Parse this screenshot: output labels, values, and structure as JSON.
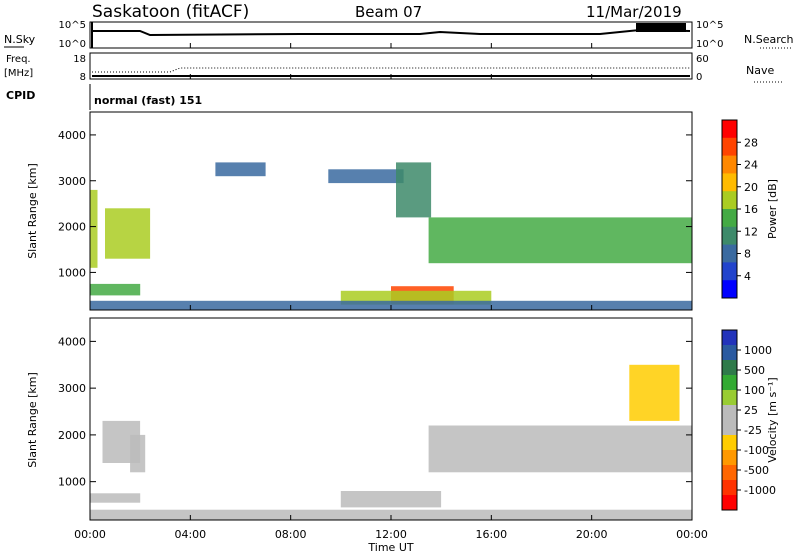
{
  "header": {
    "station": "Saskatoon (fitACF)",
    "beam": "Beam 07",
    "date": "11/Mar/2019"
  },
  "status_panels": {
    "nsky_label": "N.Sky",
    "nsearch_label": "N.Search",
    "noise_ticks": [
      "10^5",
      "10^0"
    ],
    "freq_label_line1": "Freq.",
    "freq_label_line2": "[MHz]",
    "freq_ticks": [
      "18",
      "8"
    ],
    "nave_label": "Nave",
    "nave_ticks": [
      "60",
      "0"
    ],
    "cpid_label": "CPID",
    "cpid_value": "normal (fast) 151"
  },
  "axes": {
    "x_ticks": [
      "00:00",
      "04:00",
      "08:00",
      "12:00",
      "16:00",
      "20:00",
      "00:00"
    ],
    "x_label": "Time UT",
    "y_ticks": [
      "1000",
      "2000",
      "3000",
      "4000"
    ],
    "y_label": "Slant Range [km]"
  },
  "power_colorbar": {
    "label": "Power [dB]",
    "ticks": [
      "28",
      "24",
      "20",
      "16",
      "12",
      "8",
      "4"
    ],
    "colors": [
      "#ff0000",
      "#ff4400",
      "#ff8800",
      "#ffbb00",
      "#aacc22",
      "#44aa44",
      "#3d8a6a",
      "#3a6aa0",
      "#2244cc",
      "#0000ff"
    ]
  },
  "velocity_colorbar": {
    "label": "Velocity [m s⁻¹]",
    "ticks": [
      "1000",
      "500",
      "100",
      "25",
      "-25",
      "-100",
      "-500",
      "-1000"
    ],
    "colors": [
      "#2233bb",
      "#2a5aa0",
      "#2f7a4a",
      "#33aa33",
      "#99cc33",
      "#bbbbbb",
      "#bbbbbb",
      "#ffcc00",
      "#ff9900",
      "#ff6600",
      "#ff3300",
      "#ff0000"
    ]
  },
  "chart_data": {
    "type": "heatmap",
    "title": "Saskatoon (fitACF)  Beam 07  11/Mar/2019",
    "xlabel": "Time UT",
    "ylabel": "Slant Range [km]",
    "xlim": [
      "00:00",
      "24:00"
    ],
    "ylim": [
      180,
      4500
    ],
    "panels": [
      {
        "name": "Power",
        "colorbar_label": "Power [dB]",
        "colorbar_range": [
          0,
          30
        ],
        "regions": [
          {
            "t": [
              0.0,
              0.3
            ],
            "r": [
              1100,
              2800
            ],
            "v": 16
          },
          {
            "t": [
              0.6,
              2.4
            ],
            "r": [
              1300,
              2400
            ],
            "v": 17
          },
          {
            "t": [
              0.0,
              2.0
            ],
            "r": [
              500,
              750
            ],
            "v": 14
          },
          {
            "t": [
              5.0,
              7.0
            ],
            "r": [
              3100,
              3400
            ],
            "v": 7
          },
          {
            "t": [
              9.5,
              12.5
            ],
            "r": [
              2950,
              3250
            ],
            "v": 7
          },
          {
            "t": [
              12.2,
              13.6
            ],
            "r": [
              2200,
              3400
            ],
            "v": 10
          },
          {
            "t": [
              13.5,
              24.0
            ],
            "r": [
              1200,
              2200
            ],
            "v": 14
          },
          {
            "t": [
              12.0,
              14.5
            ],
            "r": [
              300,
              700
            ],
            "v": 26
          },
          {
            "t": [
              10.0,
              16.0
            ],
            "r": [
              300,
              600
            ],
            "v": 16
          },
          {
            "t": [
              0.0,
              24.0
            ],
            "r": [
              180,
              380
            ],
            "v": 8
          }
        ]
      },
      {
        "name": "Velocity",
        "colorbar_label": "Velocity [m s⁻¹]",
        "colorbar_range": [
          -1000,
          1000
        ],
        "regions": [
          {
            "t": [
              0.5,
              2.0
            ],
            "r": [
              1400,
              2300
            ],
            "v": 0
          },
          {
            "t": [
              1.6,
              2.2
            ],
            "r": [
              1200,
              2000
            ],
            "v": 100
          },
          {
            "t": [
              0.0,
              2.0
            ],
            "r": [
              550,
              750
            ],
            "v": 0
          },
          {
            "t": [
              13.5,
              24.0
            ],
            "r": [
              1200,
              2200
            ],
            "v": 0
          },
          {
            "t": [
              10.0,
              14.0
            ],
            "r": [
              450,
              800
            ],
            "v": -150
          },
          {
            "t": [
              21.5,
              23.5
            ],
            "r": [
              2300,
              3500
            ],
            "v": -300
          },
          {
            "t": [
              0.0,
              24.0
            ],
            "r": [
              180,
              400
            ],
            "v": 60
          }
        ]
      }
    ]
  }
}
